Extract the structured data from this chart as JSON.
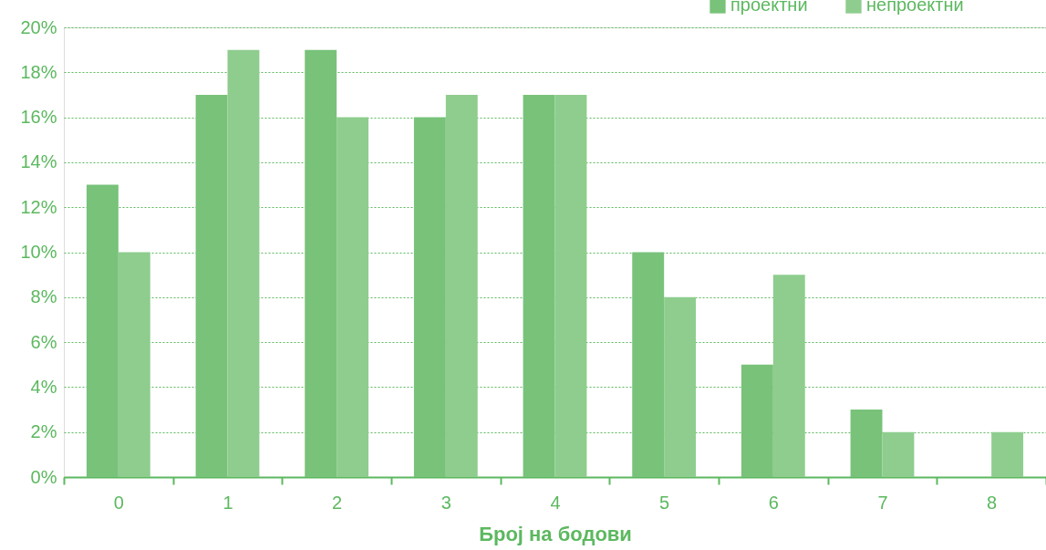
{
  "chart_data": {
    "type": "bar",
    "xlabel": "Број на бодови",
    "categories": [
      "0",
      "1",
      "2",
      "3",
      "4",
      "5",
      "6",
      "7",
      "8"
    ],
    "series": [
      {
        "name": "проектни",
        "color": "#78c27a",
        "values": [
          13,
          17,
          19,
          16,
          17,
          10,
          5,
          3,
          0
        ]
      },
      {
        "name": "непроектни",
        "color": "#8ecd8e",
        "values": [
          10,
          19,
          16,
          17,
          17,
          8,
          9,
          2,
          2
        ]
      }
    ],
    "ylim": [
      0,
      20
    ],
    "yticks": [
      {
        "value": 0,
        "label": "0%"
      },
      {
        "value": 2,
        "label": "2%"
      },
      {
        "value": 4,
        "label": "4%"
      },
      {
        "value": 6,
        "label": "6%"
      },
      {
        "value": 8,
        "label": "8%"
      },
      {
        "value": 10,
        "label": "10%"
      },
      {
        "value": 12,
        "label": "12%"
      },
      {
        "value": 14,
        "label": "14%"
      },
      {
        "value": 16,
        "label": "16%"
      },
      {
        "value": 18,
        "label": "18%"
      },
      {
        "value": 20,
        "label": "20%"
      }
    ],
    "grid": "y",
    "legend": "top right"
  }
}
